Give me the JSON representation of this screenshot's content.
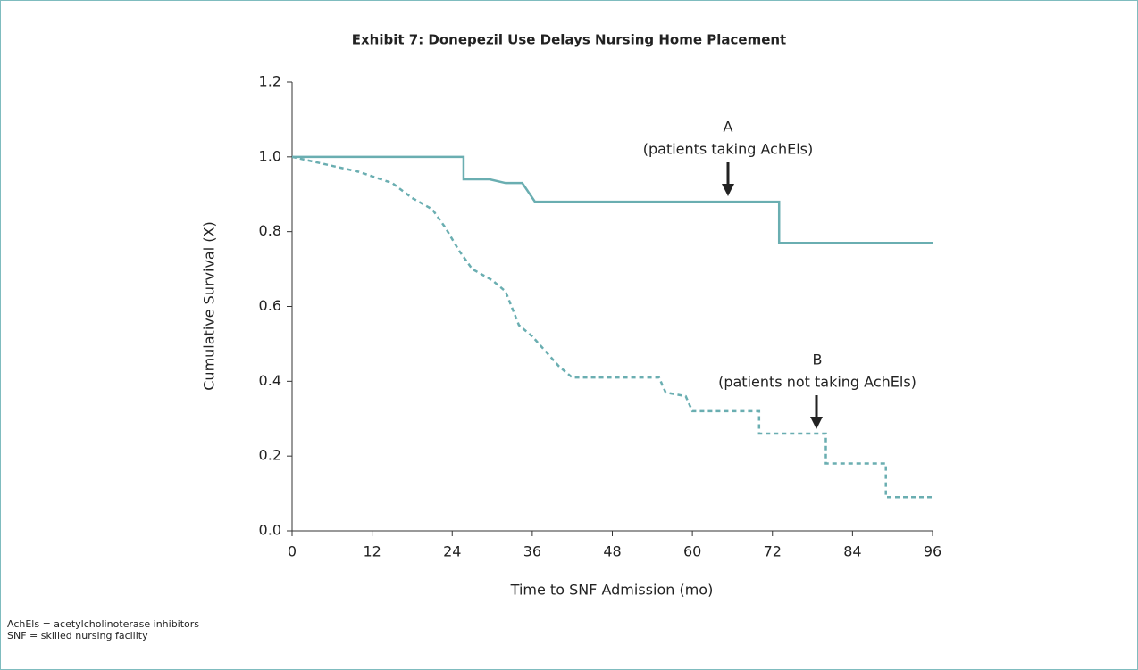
{
  "chart_data": {
    "type": "line",
    "title": "Exhibit 7: Donepezil Use Delays Nursing Home Placement",
    "xlabel": "Time to SNF Admission (mo)",
    "ylabel": "Cumulative Survival (X)",
    "xlim": [
      0,
      96
    ],
    "xticks": [
      0,
      12,
      24,
      36,
      48,
      60,
      72,
      84,
      96
    ],
    "ylim": [
      0,
      1.2
    ],
    "yticks": [
      {
        "value": 0,
        "label": "0.0"
      },
      0.2,
      0.4,
      0.6,
      0.8,
      {
        "value": 1,
        "label": "1.0"
      },
      1.2
    ],
    "series": [
      {
        "name": "A",
        "color": "#6aaeb1",
        "dashed": false,
        "x": [
          0,
          25.7,
          25.7,
          29.6,
          32,
          34.5,
          36.4,
          73,
          73,
          96
        ],
        "values": [
          1.0,
          1.0,
          0.94,
          0.94,
          0.93,
          0.93,
          0.88,
          0.88,
          0.77,
          0.77
        ]
      },
      {
        "name": "B",
        "color": "#6aaeb1",
        "dashed": true,
        "x": [
          0,
          5,
          10,
          15,
          18,
          21,
          23,
          25,
          27,
          30,
          32,
          34,
          36,
          38,
          40,
          42,
          55,
          56,
          59,
          60,
          70,
          70,
          80,
          80,
          89,
          89,
          96
        ],
        "values": [
          1.0,
          0.98,
          0.96,
          0.93,
          0.89,
          0.86,
          0.81,
          0.75,
          0.7,
          0.67,
          0.64,
          0.55,
          0.52,
          0.48,
          0.44,
          0.41,
          0.41,
          0.37,
          0.36,
          0.32,
          0.32,
          0.26,
          0.26,
          0.18,
          0.18,
          0.09,
          0.09
        ]
      }
    ],
    "annotations": [
      "A",
      "(patients taking AchEls)",
      "B",
      "(patients not taking AchEls)"
    ],
    "footnotes": [
      "AchEls = acetylcholinoterase inhibitors",
      "SNF = skilled nursing facility"
    ]
  }
}
